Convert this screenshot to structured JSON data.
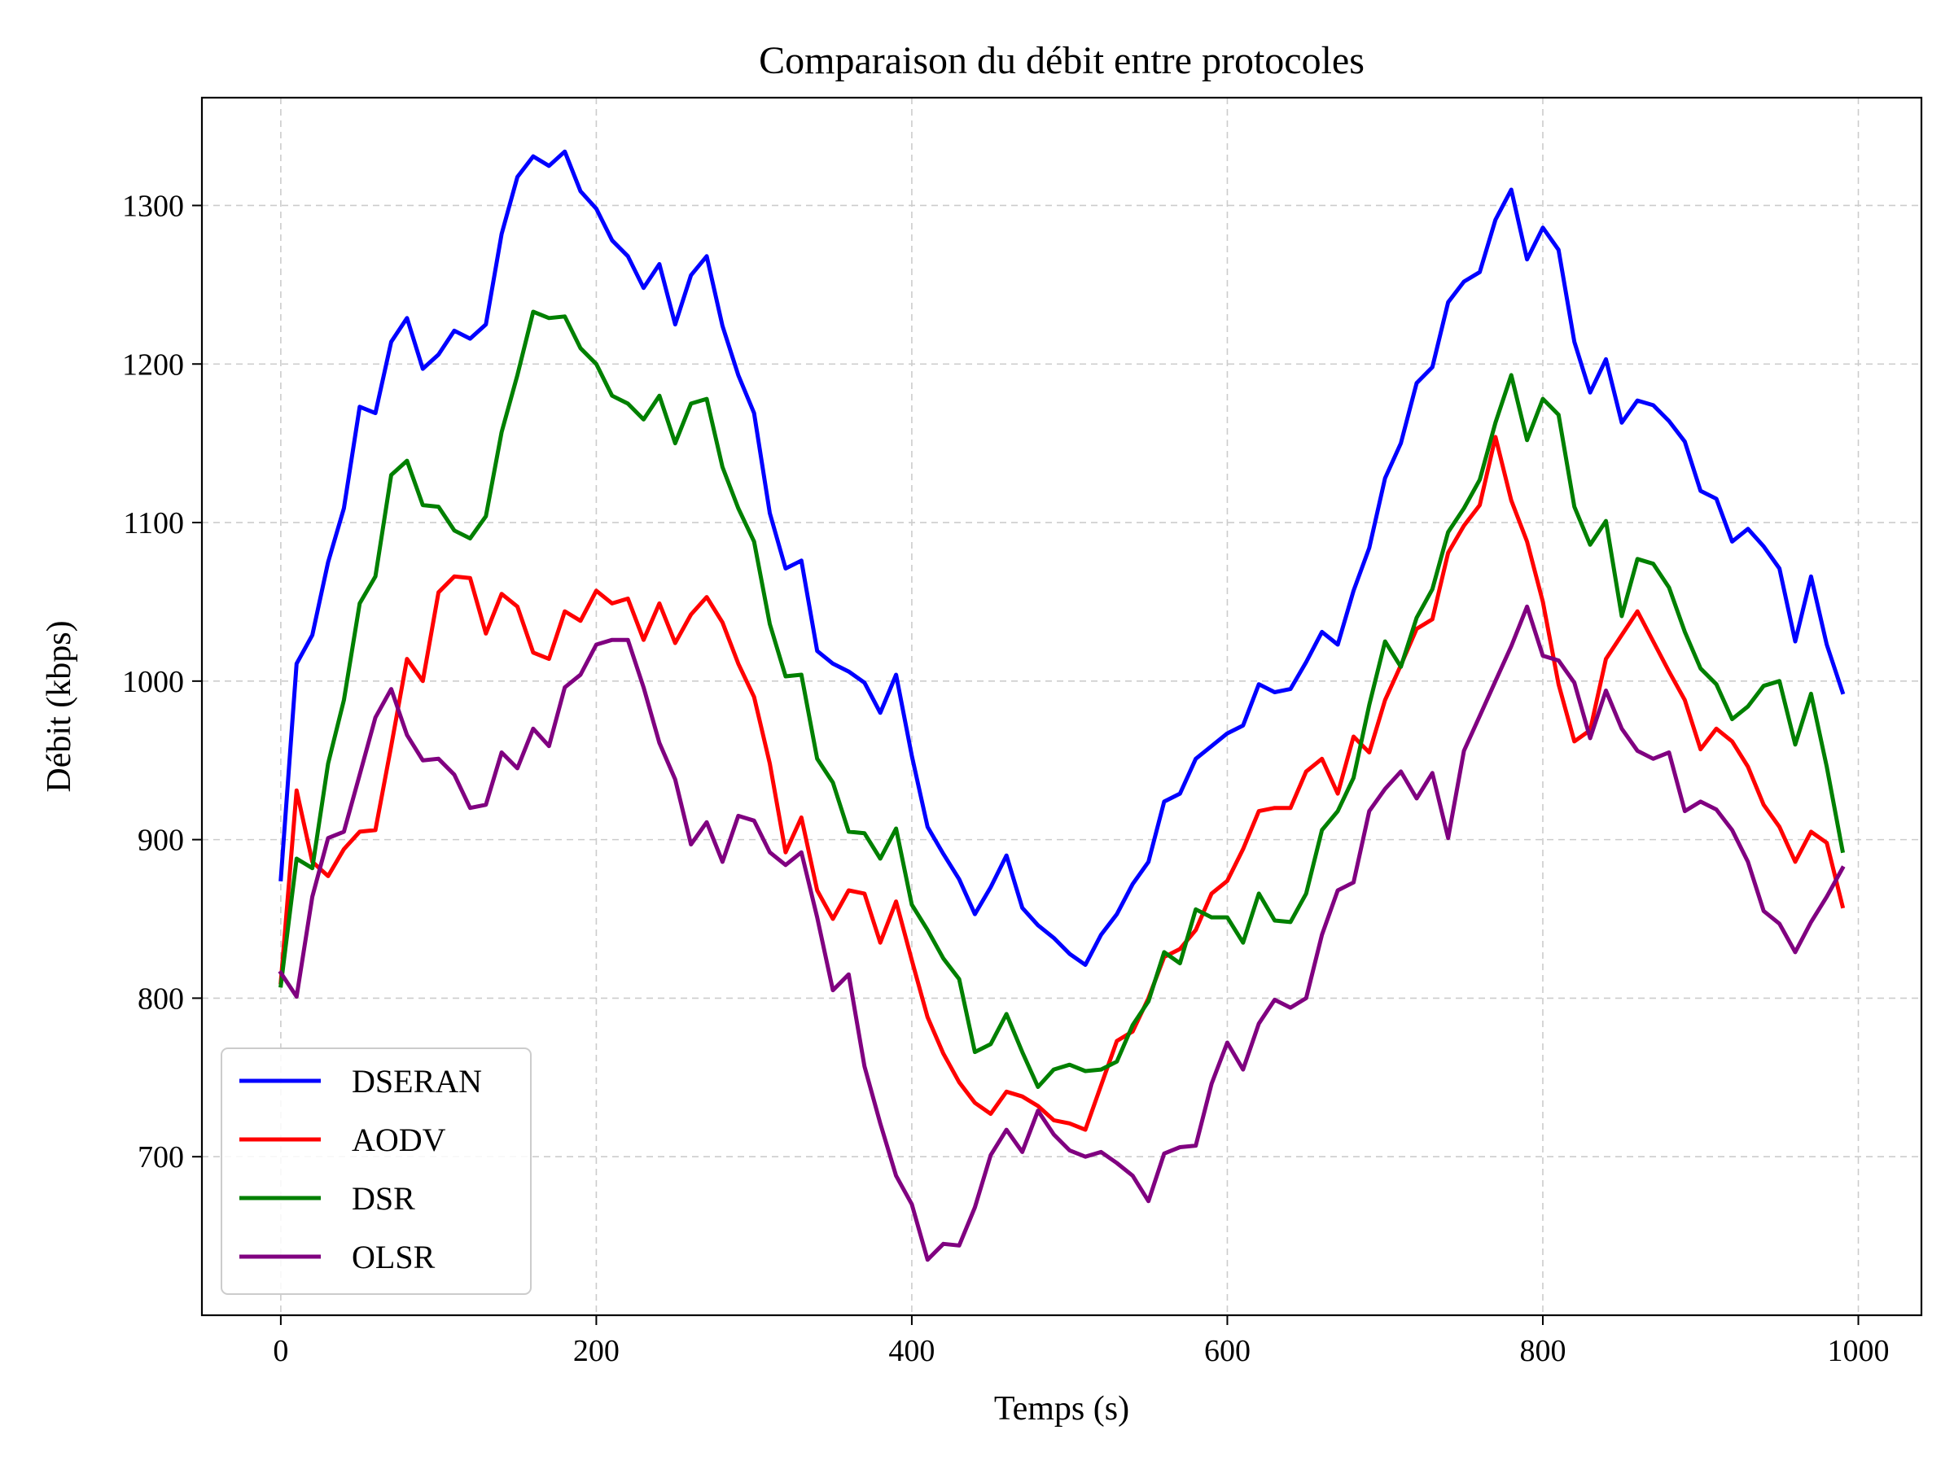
{
  "chart_data": {
    "type": "line",
    "title": "Comparaison du débit entre protocoles",
    "xlabel": "Temps (s)",
    "ylabel": "Débit (kbps)",
    "xlim": [
      -50,
      1040
    ],
    "ylim": [
      600,
      1368
    ],
    "xticks": [
      0,
      200,
      400,
      600,
      800,
      1000
    ],
    "yticks": [
      700,
      800,
      900,
      1000,
      1100,
      1200,
      1300
    ],
    "grid": true,
    "legend_position": "lower-left",
    "x": [
      0,
      10,
      20,
      30,
      40,
      50,
      60,
      70,
      80,
      90,
      100,
      110,
      120,
      130,
      140,
      150,
      160,
      170,
      180,
      190,
      200,
      210,
      220,
      230,
      240,
      250,
      260,
      270,
      280,
      290,
      300,
      310,
      320,
      330,
      340,
      350,
      360,
      370,
      380,
      390,
      400,
      410,
      420,
      430,
      440,
      450,
      460,
      470,
      480,
      490,
      500,
      510,
      520,
      530,
      540,
      550,
      560,
      570,
      580,
      590,
      600,
      610,
      620,
      630,
      640,
      650,
      660,
      670,
      680,
      690,
      700,
      710,
      720,
      730,
      740,
      750,
      760,
      770,
      780,
      790,
      800,
      810,
      820,
      830,
      840,
      850,
      860,
      870,
      880,
      890,
      900,
      910,
      920,
      930,
      940,
      950,
      960,
      970,
      980,
      990
    ],
    "series": [
      {
        "name": "DSERAN",
        "color": "#0000ff",
        "values": [
          875,
          1011,
          1029,
          1075,
          1109,
          1173,
          1169,
          1214,
          1229,
          1197,
          1206,
          1221,
          1216,
          1225,
          1282,
          1318,
          1331,
          1325,
          1334,
          1309,
          1298,
          1278,
          1268,
          1248,
          1263,
          1225,
          1256,
          1268,
          1224,
          1193,
          1169,
          1106,
          1071,
          1076,
          1019,
          1011,
          1006,
          999,
          980,
          1004,
          953,
          908,
          891,
          875,
          853,
          870,
          890,
          857,
          846,
          838,
          828,
          821,
          840,
          853,
          872,
          886,
          924,
          929,
          951,
          959,
          967,
          972,
          998,
          993,
          995,
          1012,
          1031,
          1023,
          1057,
          1084,
          1128,
          1150,
          1188,
          1198,
          1239,
          1252,
          1258,
          1291,
          1310,
          1266,
          1286,
          1272,
          1214,
          1182,
          1203,
          1163,
          1177,
          1174,
          1164,
          1151,
          1120,
          1115,
          1088,
          1096,
          1085,
          1071,
          1025,
          1066,
          1023,
          993
        ]
      },
      {
        "name": "AODV",
        "color": "#ff0000",
        "values": [
          810,
          931,
          886,
          877,
          894,
          905,
          906,
          959,
          1014,
          1000,
          1056,
          1066,
          1065,
          1030,
          1055,
          1047,
          1018,
          1014,
          1044,
          1038,
          1057,
          1049,
          1052,
          1026,
          1049,
          1024,
          1042,
          1053,
          1037,
          1011,
          990,
          948,
          892,
          914,
          868,
          850,
          868,
          866,
          835,
          861,
          824,
          788,
          765,
          747,
          734,
          727,
          741,
          738,
          732,
          723,
          721,
          717,
          745,
          773,
          779,
          800,
          826,
          831,
          843,
          866,
          874,
          894,
          918,
          920,
          920,
          943,
          951,
          929,
          965,
          955,
          988,
          1010,
          1033,
          1039,
          1081,
          1098,
          1111,
          1154,
          1114,
          1088,
          1050,
          998,
          962,
          969,
          1014,
          1029,
          1044,
          1025,
          1006,
          988,
          957,
          970,
          962,
          946,
          922,
          908,
          886,
          905,
          898,
          858
        ]
      },
      {
        "name": "DSR",
        "color": "#008000",
        "values": [
          808,
          888,
          882,
          948,
          988,
          1049,
          1066,
          1130,
          1139,
          1111,
          1110,
          1095,
          1090,
          1104,
          1157,
          1193,
          1233,
          1229,
          1230,
          1210,
          1200,
          1180,
          1175,
          1165,
          1180,
          1150,
          1175,
          1178,
          1135,
          1109,
          1088,
          1036,
          1003,
          1004,
          951,
          936,
          905,
          904,
          888,
          907,
          859,
          843,
          825,
          812,
          766,
          771,
          790,
          766,
          744,
          755,
          758,
          754,
          755,
          760,
          783,
          798,
          829,
          822,
          856,
          851,
          851,
          835,
          866,
          849,
          848,
          866,
          906,
          918,
          939,
          985,
          1025,
          1009,
          1040,
          1058,
          1094,
          1109,
          1127,
          1163,
          1193,
          1152,
          1178,
          1168,
          1110,
          1086,
          1101,
          1041,
          1077,
          1074,
          1059,
          1031,
          1008,
          998,
          976,
          984,
          997,
          1000,
          960,
          992,
          946,
          893
        ]
      },
      {
        "name": "OLSR",
        "color": "#800080",
        "values": [
          816,
          801,
          864,
          901,
          905,
          941,
          977,
          995,
          966,
          950,
          951,
          941,
          920,
          922,
          955,
          945,
          970,
          959,
          996,
          1004,
          1023,
          1026,
          1026,
          996,
          961,
          938,
          897,
          911,
          886,
          915,
          912,
          892,
          884,
          892,
          851,
          805,
          815,
          757,
          721,
          688,
          670,
          635,
          645,
          644,
          668,
          701,
          717,
          703,
          729,
          714,
          704,
          700,
          703,
          696,
          688,
          672,
          702,
          706,
          707,
          746,
          772,
          755,
          784,
          799,
          794,
          800,
          840,
          868,
          873,
          918,
          932,
          943,
          926,
          942,
          901,
          956,
          978,
          1000,
          1022,
          1047,
          1016,
          1013,
          999,
          964,
          994,
          970,
          956,
          951,
          955,
          918,
          924,
          919,
          906,
          886,
          855,
          847,
          829,
          848,
          864,
          882
        ]
      }
    ]
  }
}
